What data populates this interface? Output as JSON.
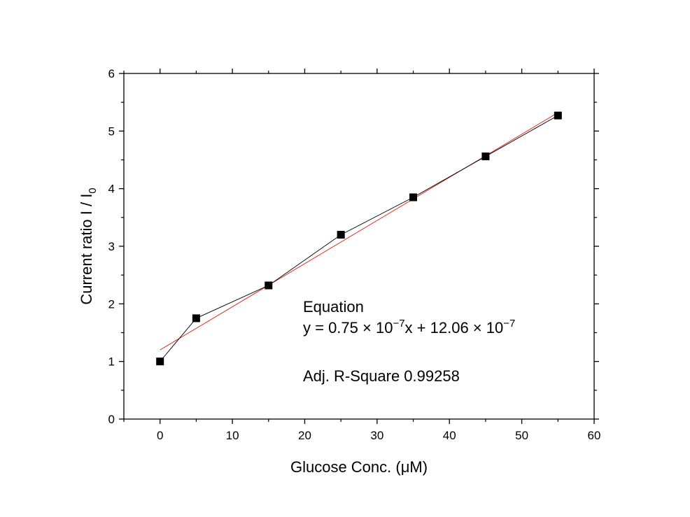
{
  "chart_data": {
    "type": "scatter",
    "xlabel": "Glucose Conc. (μM)",
    "ylabel_main": "Current ratio I / I",
    "ylabel_sub": "0",
    "xlim": [
      -5,
      60
    ],
    "ylim": [
      0,
      6
    ],
    "x_major_ticks": [
      0,
      10,
      20,
      30,
      40,
      50,
      60
    ],
    "x_minor_ticks": [
      -5,
      5,
      15,
      25,
      35,
      45,
      55
    ],
    "y_major_ticks": [
      0,
      1,
      2,
      3,
      4,
      5,
      6
    ],
    "y_minor_ticks": [
      0.5,
      1.5,
      2.5,
      3.5,
      4.5,
      5.5
    ],
    "grid": false,
    "series": [
      {
        "x": [
          0,
          5,
          15,
          25,
          35,
          45,
          55
        ],
        "y": [
          1.0,
          1.75,
          2.32,
          3.2,
          3.85,
          4.56,
          5.27
        ],
        "marker": "square",
        "color": "#000000",
        "connected": true
      }
    ],
    "fit": {
      "x": [
        0,
        55
      ],
      "y": [
        1.2,
        5.32
      ],
      "color": "#e03020"
    },
    "annotation": {
      "line1": "Equation",
      "line2_parts": [
        "y = 0.75 × 10",
        "−7",
        "x + 12.06 × 10",
        "−7"
      ],
      "line3": "Adj. R-Square 0.99258"
    }
  }
}
